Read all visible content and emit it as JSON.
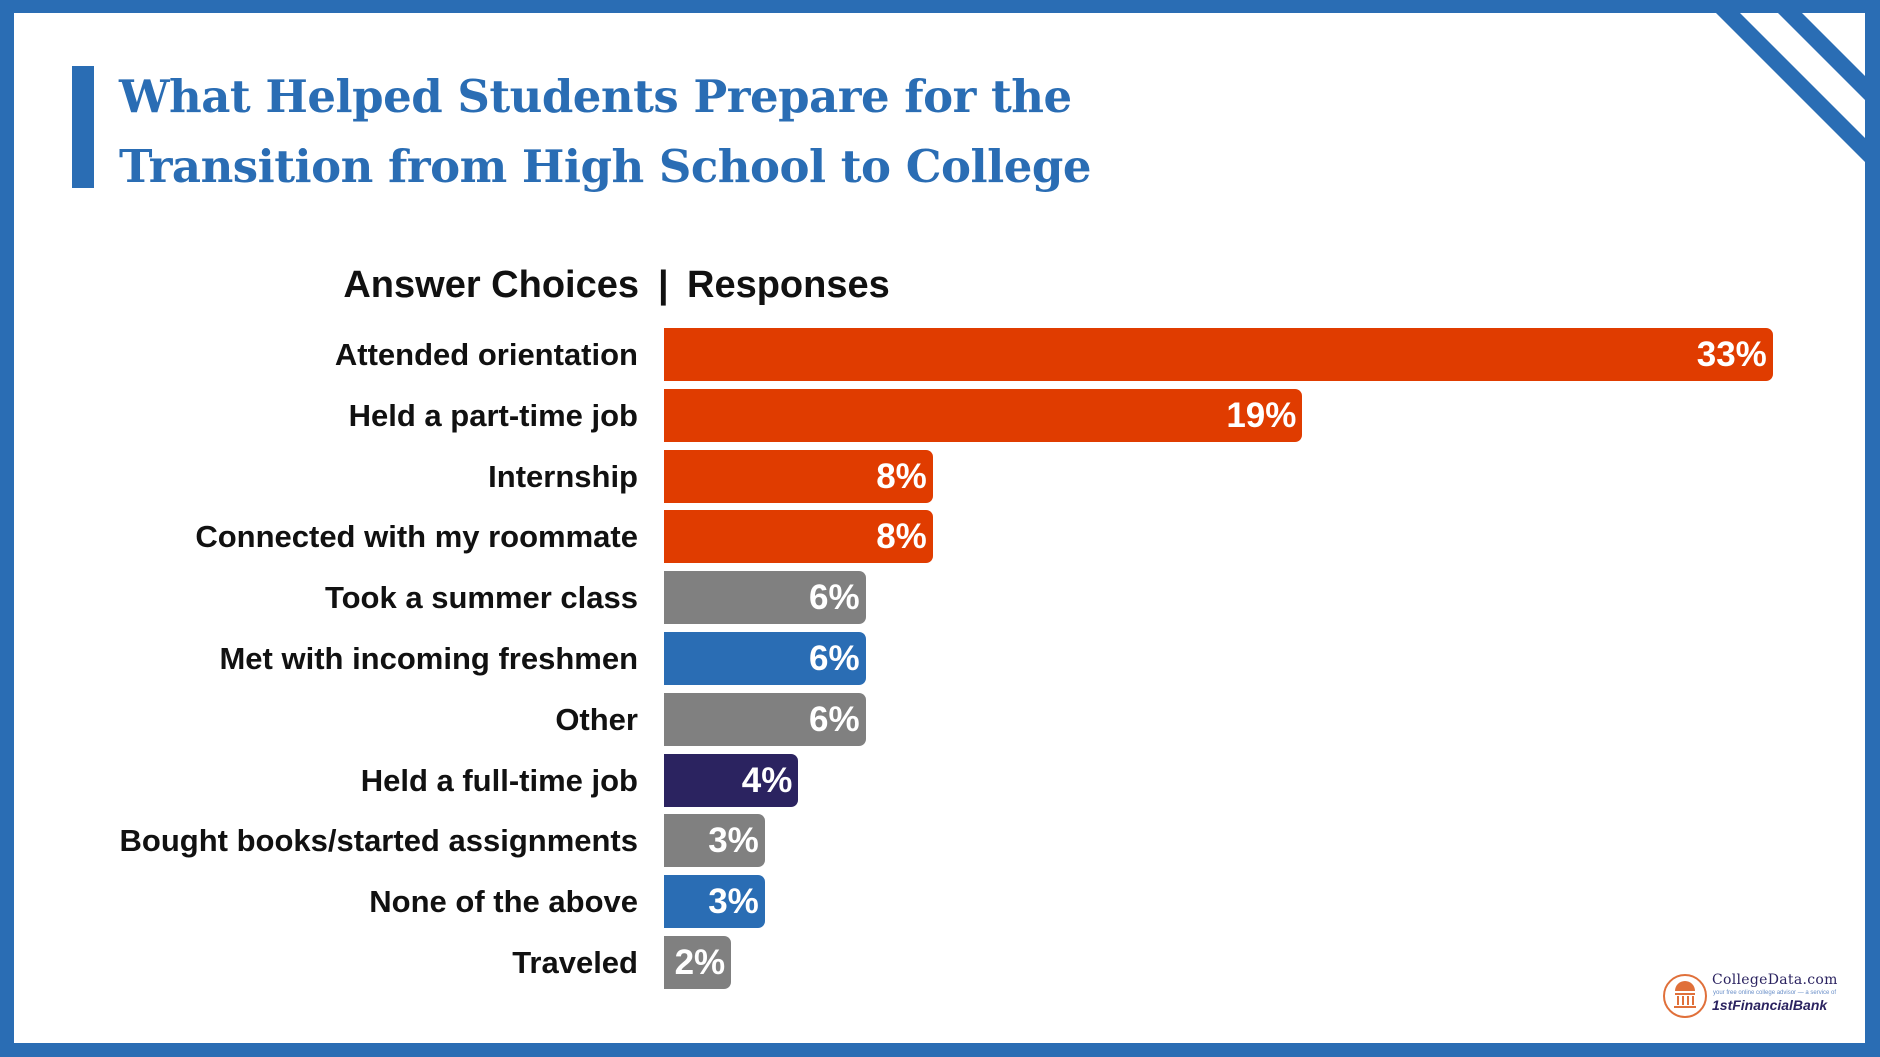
{
  "title": [
    "What Helped Students Prepare for the",
    "Transition from High School to College"
  ],
  "colors": {
    "frame": "#2a6db4",
    "orange": "#e03c00",
    "gray": "#808080",
    "blue": "#2a6db4",
    "navy": "#2b2360"
  },
  "chart_data": {
    "type": "bar",
    "orientation": "horizontal",
    "column_headers": {
      "left": "Answer Choices",
      "separator": "|",
      "right": "Responses"
    },
    "categories": [
      "Attended orientation",
      "Held a part-time job",
      "Internship",
      "Connected with my roommate",
      "Took a summer class",
      "Met with incoming freshmen",
      "Other",
      "Held a full-time job",
      "Bought books/started assignments",
      "None of the above",
      "Traveled"
    ],
    "values": [
      33,
      19,
      8,
      8,
      6,
      6,
      6,
      4,
      3,
      3,
      2
    ],
    "labels": [
      "33%",
      "19%",
      "8%",
      "8%",
      "6%",
      "6%",
      "6%",
      "4%",
      "3%",
      "3%",
      "2%"
    ],
    "bar_colors": [
      "#e03c00",
      "#e03c00",
      "#e03c00",
      "#e03c00",
      "#808080",
      "#2a6db4",
      "#808080",
      "#2b2360",
      "#808080",
      "#2a6db4",
      "#808080"
    ],
    "unit": "%",
    "grid": false
  },
  "logo": {
    "name": "CollegeData.com",
    "tagline": "your free online college advisor — a service of",
    "bank": "1stFinancialBank"
  }
}
